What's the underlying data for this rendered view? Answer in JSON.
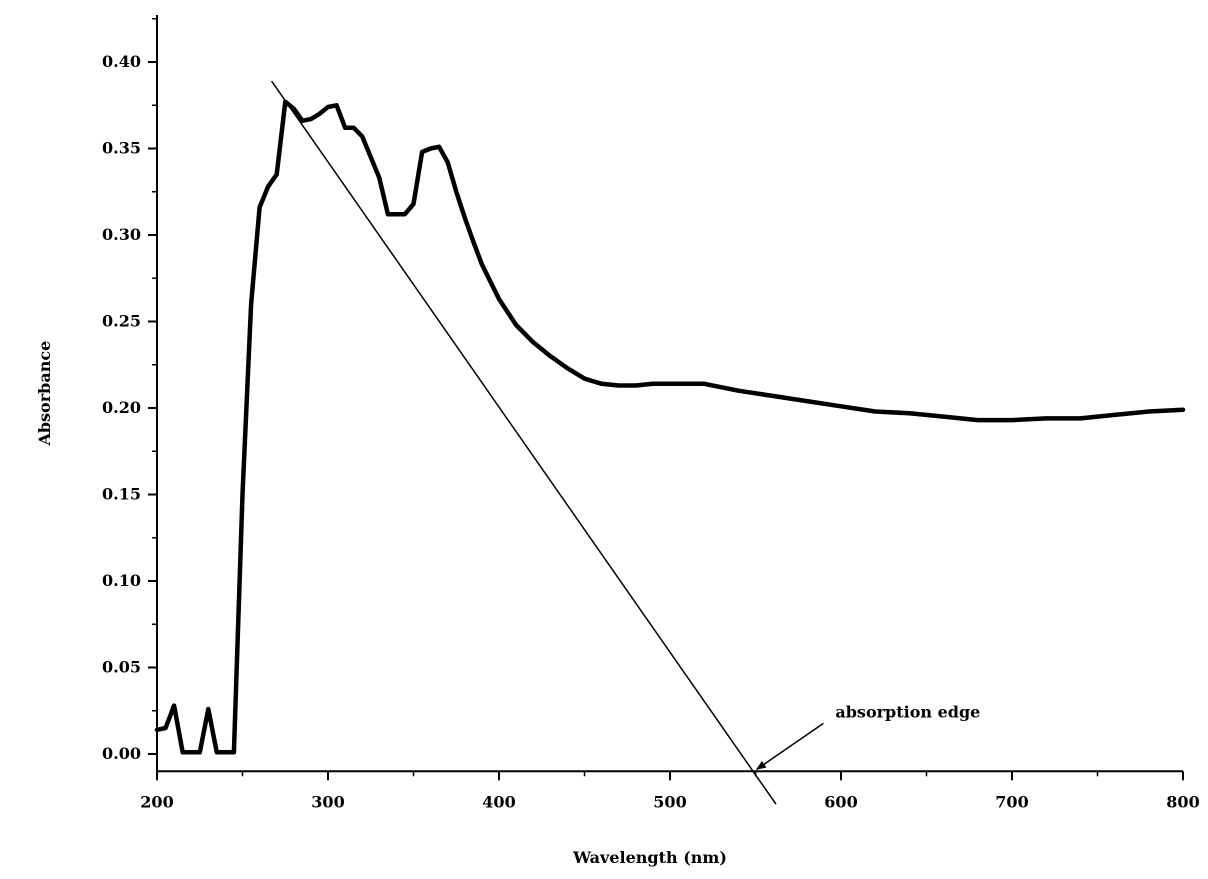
{
  "chart_data": {
    "type": "line",
    "title": "",
    "xlabel": "Wavelength (nm)",
    "ylabel": "Absorbance",
    "xlim": [
      200,
      800
    ],
    "ylim": [
      -0.01,
      0.42
    ],
    "x_ticks": [
      200,
      300,
      400,
      500,
      600,
      700,
      800
    ],
    "x_tick_labels": [
      "200",
      "300",
      "400",
      "500",
      "600",
      "700",
      "800"
    ],
    "y_ticks": [
      0.0,
      0.05,
      0.1,
      0.15,
      0.2,
      0.25,
      0.3,
      0.35,
      0.4
    ],
    "y_tick_labels": [
      "0.00",
      "0.05",
      "0.10",
      "0.15",
      "0.20",
      "0.25",
      "0.30",
      "0.35",
      "0.40"
    ],
    "grid": false,
    "legend": "none",
    "series": [
      {
        "x": [
          200,
          205,
          210,
          215,
          220,
          225,
          230,
          235,
          240,
          245,
          250,
          255,
          260,
          265,
          270,
          275,
          280,
          285,
          290,
          295,
          300,
          305,
          310,
          315,
          320,
          325,
          330,
          335,
          340,
          345,
          350,
          355,
          360,
          365,
          370,
          375,
          380,
          385,
          390,
          400,
          410,
          420,
          430,
          440,
          450,
          460,
          470,
          480,
          490,
          500,
          520,
          540,
          560,
          580,
          600,
          620,
          640,
          660,
          680,
          700,
          720,
          740,
          760,
          780,
          800
        ],
        "y": [
          0.014,
          0.015,
          0.028,
          0.001,
          0.001,
          0.001,
          0.026,
          0.001,
          0.001,
          0.001,
          0.15,
          0.26,
          0.316,
          0.328,
          0.335,
          0.377,
          0.373,
          0.366,
          0.367,
          0.37,
          0.374,
          0.375,
          0.362,
          0.362,
          0.357,
          0.345,
          0.333,
          0.312,
          0.312,
          0.312,
          0.318,
          0.348,
          0.35,
          0.351,
          0.342,
          0.325,
          0.31,
          0.296,
          0.283,
          0.263,
          0.248,
          0.238,
          0.23,
          0.223,
          0.217,
          0.214,
          0.213,
          0.213,
          0.214,
          0.214,
          0.214,
          0.21,
          0.207,
          0.204,
          0.201,
          0.198,
          0.197,
          0.195,
          0.193,
          0.193,
          0.194,
          0.194,
          0.196,
          0.198,
          0.199
        ]
      }
    ],
    "annotations": [
      {
        "type": "tangent-line",
        "x": [
          267,
          562
        ],
        "y": [
          0.389,
          -0.029
        ]
      },
      {
        "type": "label-arrow",
        "text": "absorption edge",
        "point": [
          549,
          -0.01
        ],
        "from": [
          578,
          0.005
        ]
      }
    ]
  }
}
